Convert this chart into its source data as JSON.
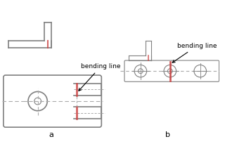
{
  "bg_color": "#ffffff",
  "line_color": "#808080",
  "dark_line": "#555555",
  "red_color": "#cc4444",
  "dashed_color": "#aaaaaa",
  "label_a": "a",
  "label_b": "b",
  "bending_line_text": "bending line",
  "fig_width": 3.2,
  "fig_height": 2.15,
  "dpi": 100
}
